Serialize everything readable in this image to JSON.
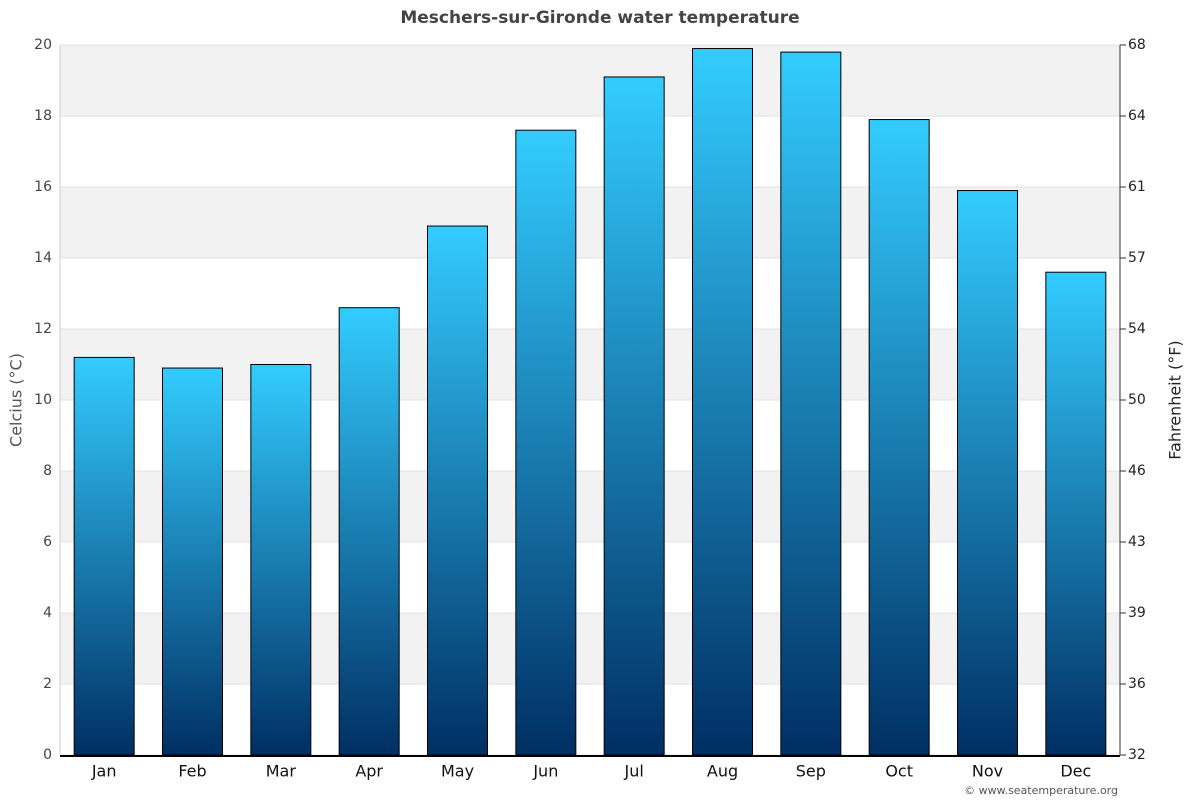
{
  "chart_data": {
    "type": "bar",
    "title": "Meschers-sur-Gironde water temperature",
    "categories": [
      "Jan",
      "Feb",
      "Mar",
      "Apr",
      "May",
      "Jun",
      "Jul",
      "Aug",
      "Sep",
      "Oct",
      "Nov",
      "Dec"
    ],
    "values": [
      11.2,
      10.9,
      11.0,
      12.6,
      14.9,
      17.6,
      19.1,
      19.9,
      19.8,
      17.9,
      15.9,
      13.6
    ],
    "gradient": [
      "#33ccff",
      "#002f63"
    ],
    "ylabel": "Celcius (°C)",
    "y2label": "Fahrenheit (°F)",
    "ylim": [
      0,
      20
    ],
    "yticks": [
      0,
      2,
      4,
      6,
      8,
      10,
      12,
      14,
      16,
      18,
      20
    ],
    "y2lim": [
      32,
      68
    ],
    "y2ticks": [
      32,
      {
        "value": 35.6,
        "label": "36"
      },
      {
        "value": 39.2,
        "label": "39"
      },
      {
        "value": 42.8,
        "label": "43"
      },
      {
        "value": 46.4,
        "label": "46"
      },
      50,
      {
        "value": 53.6,
        "label": "54"
      },
      {
        "value": 57.2,
        "label": "57"
      },
      {
        "value": 60.8,
        "label": "61"
      },
      {
        "value": 64.4,
        "label": "64"
      },
      68
    ],
    "grid": true,
    "credit": "© www.seatemperature.org"
  }
}
